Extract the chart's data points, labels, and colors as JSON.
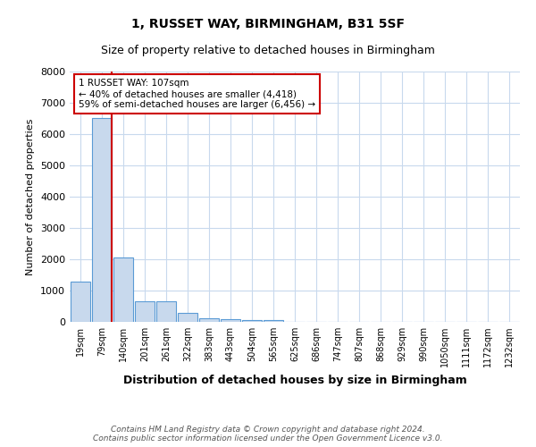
{
  "title": "1, RUSSET WAY, BIRMINGHAM, B31 5SF",
  "subtitle": "Size of property relative to detached houses in Birmingham",
  "xlabel": "Distribution of detached houses by size in Birmingham",
  "ylabel": "Number of detached properties",
  "bar_color": "#c8d9ed",
  "bar_edge_color": "#5b9bd5",
  "categories": [
    "19sqm",
    "79sqm",
    "140sqm",
    "201sqm",
    "261sqm",
    "322sqm",
    "383sqm",
    "443sqm",
    "504sqm",
    "565sqm",
    "625sqm",
    "686sqm",
    "747sqm",
    "807sqm",
    "868sqm",
    "929sqm",
    "990sqm",
    "1050sqm",
    "1111sqm",
    "1172sqm",
    "1232sqm"
  ],
  "values": [
    1300,
    6500,
    2050,
    650,
    650,
    280,
    120,
    100,
    50,
    50,
    0,
    0,
    0,
    0,
    0,
    0,
    0,
    0,
    0,
    0,
    0
  ],
  "ylim": [
    0,
    8000
  ],
  "property_line_color": "#cc0000",
  "annotation_text": "1 RUSSET WAY: 107sqm\n← 40% of detached houses are smaller (4,418)\n59% of semi-detached houses are larger (6,456) →",
  "annotation_box_color": "#cc0000",
  "footer_text": "Contains HM Land Registry data © Crown copyright and database right 2024.\nContains public sector information licensed under the Open Government Licence v3.0.",
  "background_color": "#ffffff",
  "grid_color": "#c8d9ed"
}
